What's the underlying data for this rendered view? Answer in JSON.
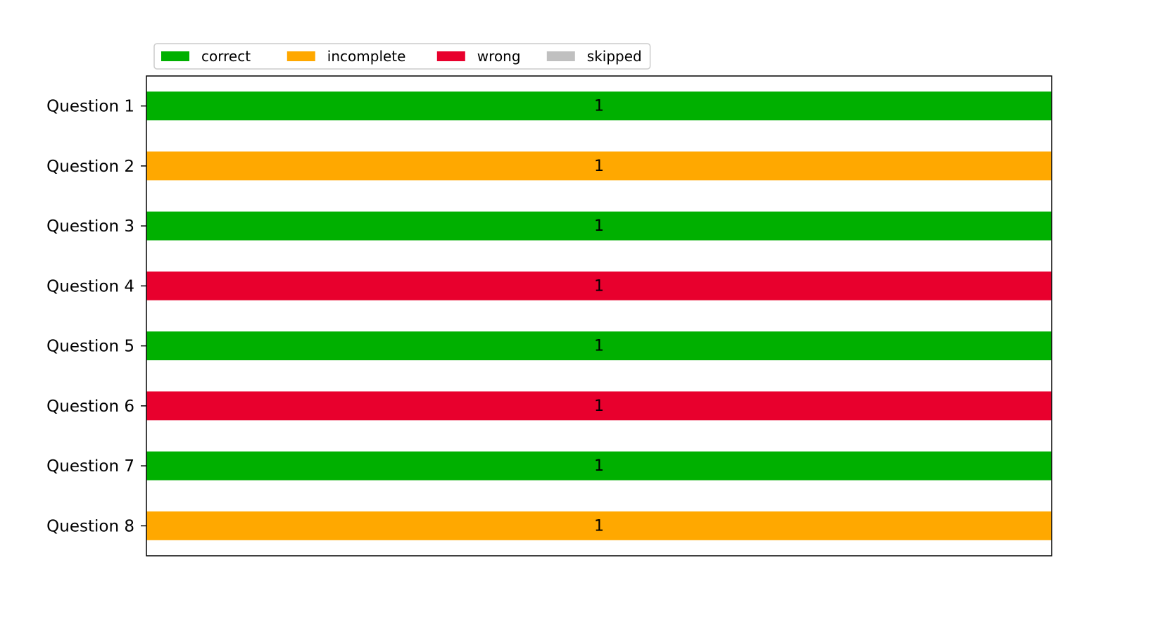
{
  "chart_data": {
    "type": "bar",
    "orientation": "horizontal",
    "stacked": true,
    "title": "",
    "xlabel": "",
    "ylabel": "",
    "categories": [
      "Question 1",
      "Question 2",
      "Question 3",
      "Question 4",
      "Question 5",
      "Question 6",
      "Question 7",
      "Question 8"
    ],
    "series": [
      {
        "name": "correct",
        "color": "#00b000",
        "values": [
          1,
          0,
          1,
          0,
          1,
          0,
          1,
          0
        ]
      },
      {
        "name": "incomplete",
        "color": "#ffa800",
        "values": [
          0,
          1,
          0,
          0,
          0,
          0,
          0,
          1
        ]
      },
      {
        "name": "wrong",
        "color": "#e8002d",
        "values": [
          0,
          0,
          0,
          1,
          0,
          1,
          0,
          0
        ]
      },
      {
        "name": "skipped",
        "color": "#c0c0c0",
        "values": [
          0,
          0,
          0,
          0,
          0,
          0,
          0,
          0
        ]
      }
    ],
    "data_labels": [
      "1",
      "1",
      "1",
      "1",
      "1",
      "1",
      "1",
      "1"
    ],
    "xlim": [
      0,
      1
    ],
    "x_ticks_visible": false,
    "grid": false,
    "legend": {
      "placement": "top-left",
      "orientation": "horizontal"
    }
  }
}
